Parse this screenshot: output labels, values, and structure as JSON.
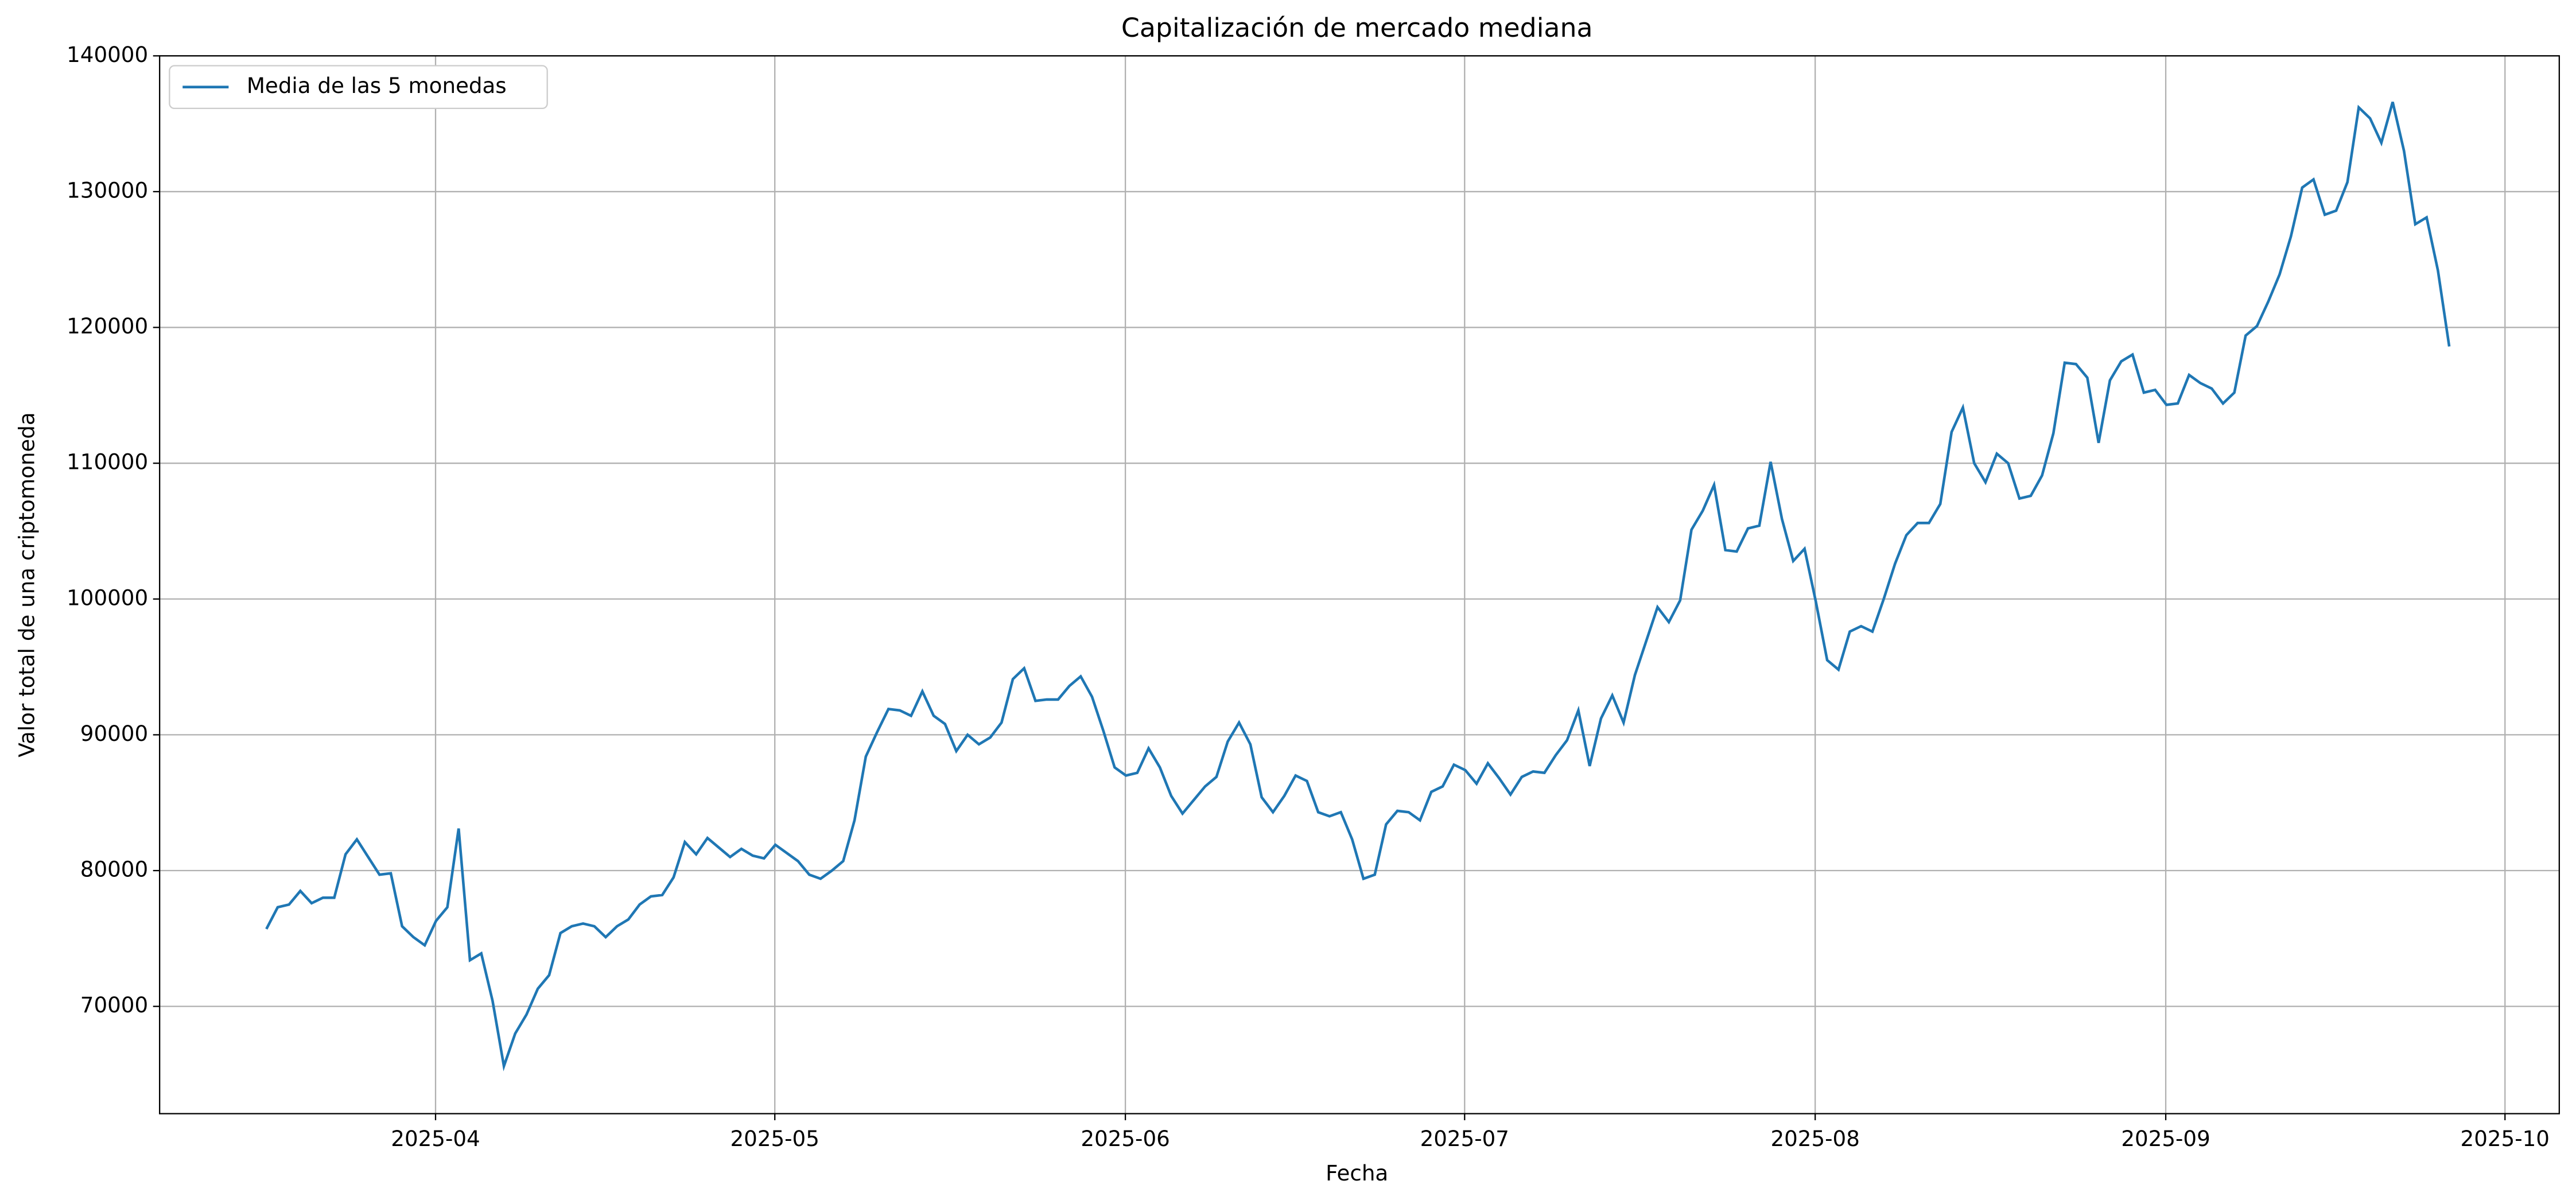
{
  "chart_data": {
    "type": "line",
    "title": "Capitalización de mercado mediana",
    "x_label": "Fecha",
    "y_label": "Valor total de una criptomoneda",
    "xticks": [
      "2025-04",
      "2025-05",
      "2025-06",
      "2025-07",
      "2025-08",
      "2025-09",
      "2025-10"
    ],
    "ylim": [
      62100,
      140000
    ],
    "yticks": [
      70000,
      80000,
      90000,
      100000,
      110000,
      120000,
      130000,
      140000
    ],
    "grid": true,
    "legend": "upper left",
    "series": [
      {
        "name": "Media de las 5 monedas",
        "color": "#1f77b4",
        "values": [
          75700,
          77300,
          77500,
          78500,
          77600,
          78000,
          78000,
          81200,
          82300,
          81000,
          79700,
          79800,
          75900,
          75100,
          74500,
          76300,
          77300,
          83100,
          73400,
          73900,
          70400,
          65600,
          68000,
          69400,
          71300,
          72300,
          75400,
          75900,
          76100,
          75900,
          75100,
          75900,
          76400,
          77500,
          78100,
          78200,
          79500,
          82100,
          81200,
          82400,
          81700,
          81000,
          81600,
          81100,
          80900,
          81900,
          81300,
          80700,
          79700,
          79400,
          80000,
          80700,
          83700,
          88400,
          90200,
          91900,
          91800,
          91400,
          93200,
          91400,
          90800,
          88800,
          90000,
          89300,
          89800,
          90900,
          94100,
          94900,
          92500,
          92600,
          92600,
          93600,
          94300,
          92800,
          90300,
          87600,
          87000,
          87200,
          89000,
          87600,
          85500,
          84200,
          85200,
          86200,
          86900,
          89500,
          90900,
          89300,
          85400,
          84300,
          85500,
          87000,
          86600,
          84300,
          84000,
          84300,
          82300,
          79400,
          79700,
          83400,
          84400,
          84300,
          83700,
          85800,
          86200,
          87800,
          87400,
          86400,
          87900,
          86800,
          85600,
          86900,
          87300,
          87200,
          88500,
          89600,
          91800,
          87700,
          91200,
          92900,
          90900,
          94400,
          96900,
          99400,
          98300,
          99900,
          105100,
          106500,
          108400,
          103600,
          103500,
          105200,
          105400,
          110100,
          105900,
          102800,
          103700,
          99800,
          95500,
          94800,
          97600,
          98000,
          97600,
          100000,
          102600,
          104700,
          105600,
          105600,
          107000,
          112300,
          114100,
          110000,
          108600,
          110700,
          110000,
          107400,
          107600,
          109100,
          112200,
          117400,
          117300,
          116300,
          111500,
          116100,
          117500,
          118000,
          115200,
          115400,
          114300,
          114400,
          116500,
          115900,
          115500,
          114400,
          115200,
          119400,
          120100,
          121900,
          123900,
          126700,
          130300,
          130900,
          128300,
          128600,
          130700,
          136200,
          135400,
          133600,
          136600,
          133000,
          127600,
          128100,
          124200,
          118600
        ]
      }
    ]
  }
}
